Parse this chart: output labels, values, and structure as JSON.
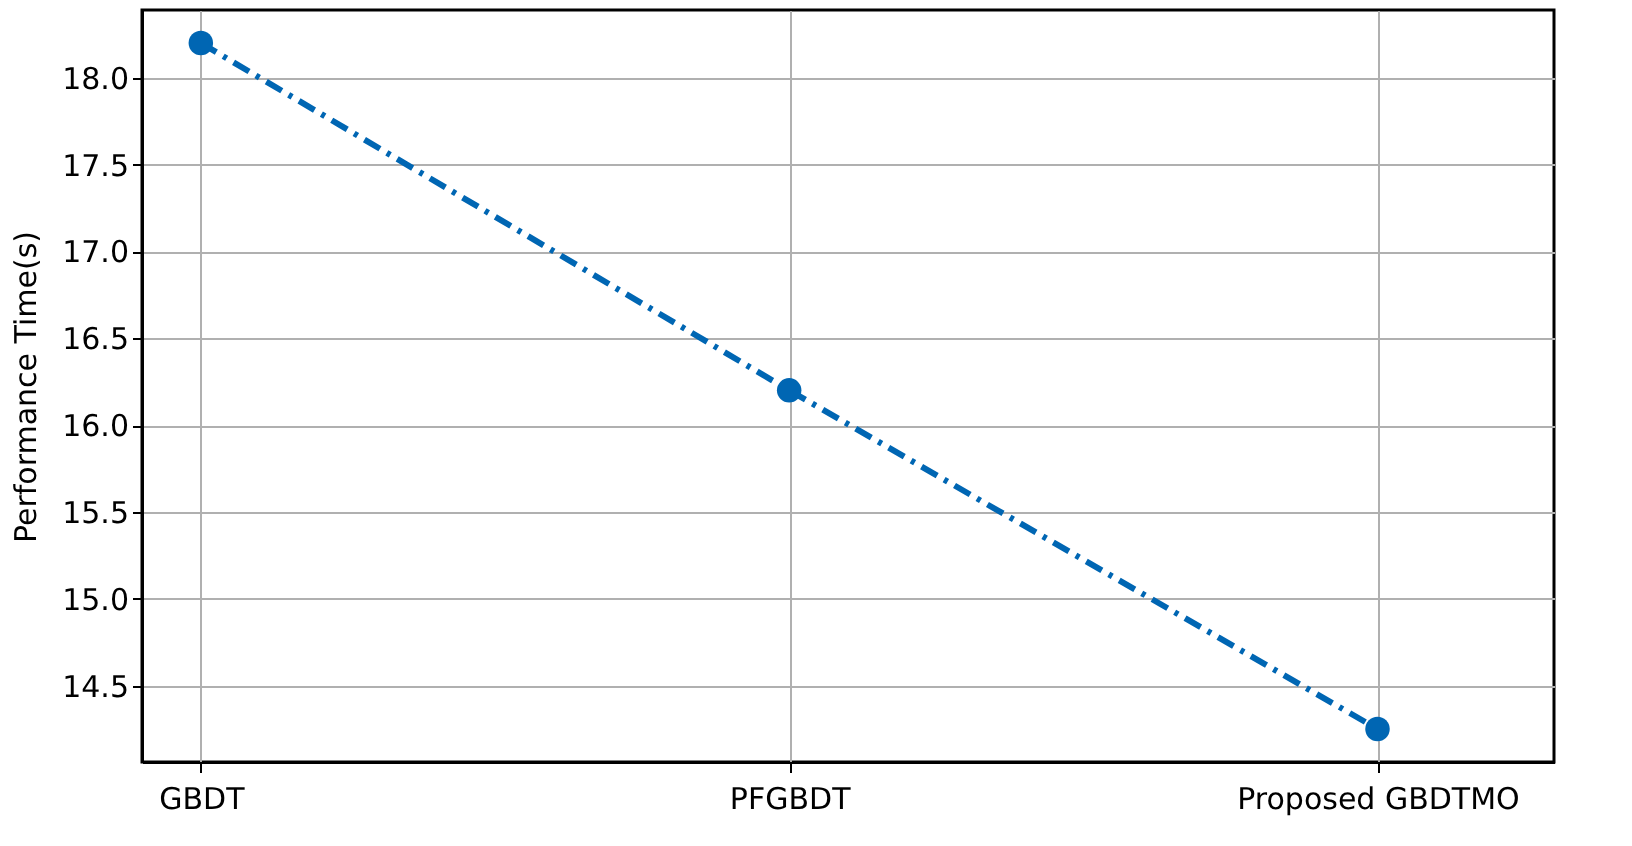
{
  "chart_data": {
    "type": "line",
    "ylabel": "Performance Time(s)",
    "categories": [
      "GBDT",
      "PFGBDT",
      "Proposed GBDTMO"
    ],
    "series": [
      {
        "color": "#0066b3",
        "values": [
          18.2,
          16.2,
          14.25
        ]
      }
    ],
    "ylim": [
      14.06,
      18.39
    ],
    "yticks": [
      14.5,
      {
        "value": 15,
        "label": "15.0"
      },
      15.5,
      {
        "value": 16,
        "label": "16.0"
      },
      16.5,
      {
        "value": 17,
        "label": "17.0"
      },
      17.5,
      {
        "value": 18,
        "label": "18.0"
      }
    ],
    "grid": true,
    "marker": "circle",
    "line_style": "dashed"
  }
}
